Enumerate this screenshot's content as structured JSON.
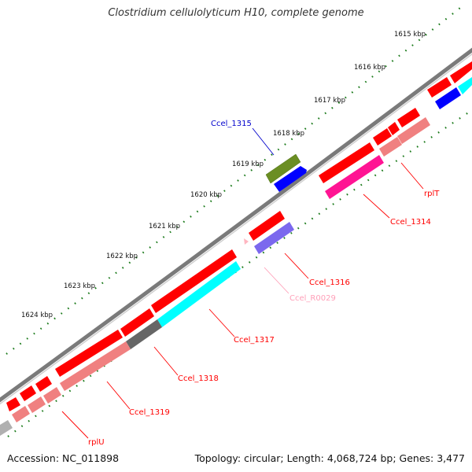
{
  "title": "Clostridium cellulolyticum H10, complete genome",
  "accession": "Accession: NC_011898",
  "stats": "Topology: circular; Length: 4,068,724 bp; Genes: 3,477",
  "colors": {
    "backbone": "#808080",
    "tick": "#1a7a1a",
    "gene_red": "#ff0000",
    "gene_pink": "#f08080",
    "gene_cyan": "#00ffff",
    "gene_olive": "#6b8e23",
    "gene_blue": "#0000ff",
    "gene_purple": "#7b68ee",
    "gene_magenta": "#ff1493",
    "gene_gray": "#666666",
    "rna": "#ffb6c1"
  },
  "ruler": [
    "1615 kbp",
    "1616 kbp",
    "1617 kbp",
    "1618 kbp",
    "1619 kbp",
    "1620 kbp",
    "1621 kbp",
    "1622 kbp",
    "1623 kbp",
    "1624 kbp"
  ],
  "labels": {
    "cc1315": "Ccel_1315",
    "cc1314": "Ccel_1314",
    "rplT": "rplT",
    "cc1316": "Ccel_1316",
    "ccR0029": "Ccel_R0029",
    "cc1317": "Ccel_1317",
    "cc1318": "Ccel_1318",
    "cc1319": "Ccel_1319",
    "rplU": "rplU"
  }
}
